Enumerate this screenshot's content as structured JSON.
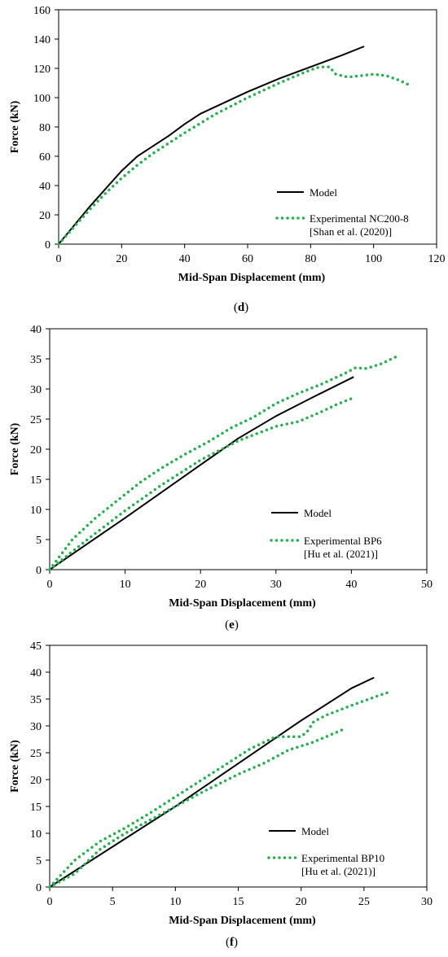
{
  "colors": {
    "model": "#000000",
    "experimental": "#22b14c"
  },
  "chart_data": [
    {
      "id": "d",
      "type": "line",
      "caption": "d",
      "xlabel": "Mid-Span Displacement (mm)",
      "ylabel": "Force (kN)",
      "xlim": [
        0,
        120
      ],
      "ylim": [
        0,
        160
      ],
      "xticks": [
        0,
        20,
        40,
        60,
        80,
        100,
        120
      ],
      "yticks": [
        0,
        20,
        40,
        60,
        80,
        100,
        120,
        140,
        160
      ],
      "grid": false,
      "legend_position": "lower-right",
      "series": [
        {
          "name": "Model",
          "style": "solid",
          "x": [
            0,
            5,
            10,
            15,
            20,
            25,
            30,
            35,
            40,
            45,
            50,
            60,
            70,
            80,
            90,
            97
          ],
          "y": [
            0,
            13,
            26,
            38,
            50,
            60,
            67,
            74,
            82,
            89,
            94,
            104,
            113,
            121,
            129,
            135
          ]
        },
        {
          "name": "Experimental NC200-8",
          "name_line2": "[Shan et al. (2020)]",
          "style": "dotted",
          "x": [
            0,
            5,
            10,
            15,
            20,
            25,
            30,
            40,
            50,
            60,
            70,
            80,
            83,
            86,
            88,
            92,
            96,
            100,
            104,
            108,
            112
          ],
          "y": [
            0,
            12,
            24,
            35,
            45,
            54,
            62,
            76,
            89,
            100,
            110,
            119,
            121,
            121,
            116,
            114,
            115,
            116,
            115,
            112,
            108
          ]
        }
      ]
    },
    {
      "id": "e",
      "type": "line",
      "caption": "e",
      "xlabel": "Mid-Span Displacement (mm)",
      "ylabel": "Force (kN)",
      "xlim": [
        0,
        50
      ],
      "ylim": [
        0,
        40
      ],
      "xticks": [
        0,
        10,
        20,
        30,
        40,
        50
      ],
      "yticks": [
        0,
        5,
        10,
        15,
        20,
        25,
        30,
        35,
        40
      ],
      "grid": false,
      "legend_position": "lower-right",
      "series": [
        {
          "name": "Model",
          "style": "solid",
          "x": [
            0,
            5,
            10,
            15,
            20,
            25,
            30,
            35,
            40.3
          ],
          "y": [
            0,
            4.3,
            8.6,
            13,
            17.4,
            21.8,
            25.5,
            28.7,
            32
          ]
        },
        {
          "name": "Experimental BP6",
          "name_line2": "[Hu et al. (2021)]",
          "style": "dotted",
          "x": [
            0,
            3,
            6,
            9,
            12,
            15,
            18,
            21,
            24,
            27,
            30,
            33,
            36,
            39,
            40.5,
            42,
            44,
            46
          ],
          "y": [
            0,
            5,
            8.5,
            11.5,
            14.5,
            17,
            19.2,
            21.2,
            23.5,
            25.3,
            27.6,
            29.3,
            30.8,
            32.5,
            33.5,
            33.4,
            34.2,
            35.4
          ]
        },
        {
          "name": "",
          "style": "dotted",
          "x": [
            0,
            5,
            10,
            15,
            20,
            25,
            30,
            33,
            36,
            38,
            40
          ],
          "y": [
            0,
            5,
            9.8,
            14.2,
            18.2,
            21.4,
            23.8,
            24.6,
            26.2,
            27.4,
            28.4
          ]
        }
      ]
    },
    {
      "id": "f",
      "type": "line",
      "caption": "f",
      "xlabel": "Mid-Span Displacement (mm)",
      "ylabel": "Force (kN)",
      "xlim": [
        0,
        30
      ],
      "ylim": [
        0,
        45
      ],
      "xticks": [
        0,
        5,
        10,
        15,
        20,
        25,
        30
      ],
      "yticks": [
        0,
        5,
        10,
        15,
        20,
        25,
        30,
        35,
        40,
        45
      ],
      "grid": false,
      "legend_position": "lower-right",
      "series": [
        {
          "name": "Model",
          "style": "solid",
          "x": [
            0,
            5,
            10,
            15,
            20,
            24,
            25.8
          ],
          "y": [
            0,
            7.5,
            15,
            23,
            31,
            37,
            39
          ]
        },
        {
          "name": "Experimental BP10",
          "name_line2": "[Hu et al. (2021)]",
          "style": "dotted",
          "x": [
            0,
            2,
            4,
            6,
            8,
            10,
            12,
            14,
            16,
            18,
            19,
            20,
            20.5,
            21,
            22,
            24,
            26,
            27
          ],
          "y": [
            0,
            5,
            8.5,
            11,
            13.8,
            16.8,
            19.8,
            22.8,
            25.8,
            28,
            28,
            28,
            29,
            30.8,
            32,
            33.8,
            35.5,
            36.3
          ]
        },
        {
          "name": "",
          "style": "dotted",
          "x": [
            0,
            2,
            4,
            6,
            8,
            10,
            12,
            15,
            17,
            19,
            21,
            23.5
          ],
          "y": [
            0,
            2.5,
            7,
            10,
            12.5,
            15,
            17.5,
            21,
            23,
            25.5,
            27,
            29.5
          ]
        }
      ]
    }
  ]
}
